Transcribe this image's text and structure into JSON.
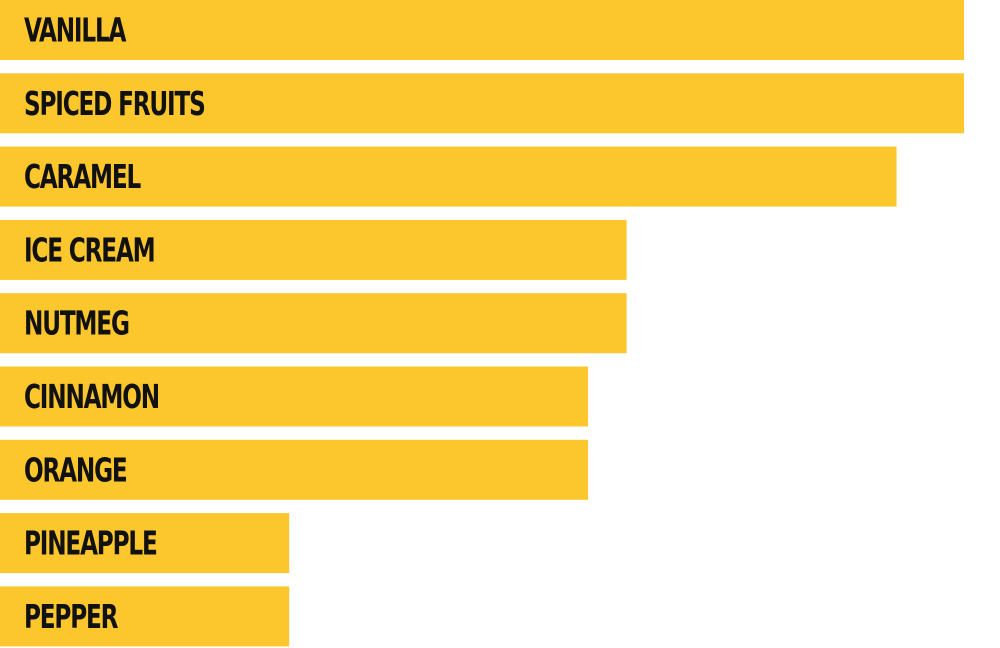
{
  "chart_data": {
    "type": "bar",
    "orientation": "horizontal",
    "categories": [
      "VANILLA",
      "SPICED FRUITS",
      "CARAMEL",
      "ICE CREAM",
      "NUTMEG",
      "CINNAMON",
      "ORANGE",
      "PINEAPPLE",
      "PEPPER"
    ],
    "values": [
      100,
      100,
      93,
      65,
      65,
      61,
      61,
      30,
      30
    ],
    "color": "#fcc62d",
    "xlim": [
      0,
      100
    ]
  }
}
